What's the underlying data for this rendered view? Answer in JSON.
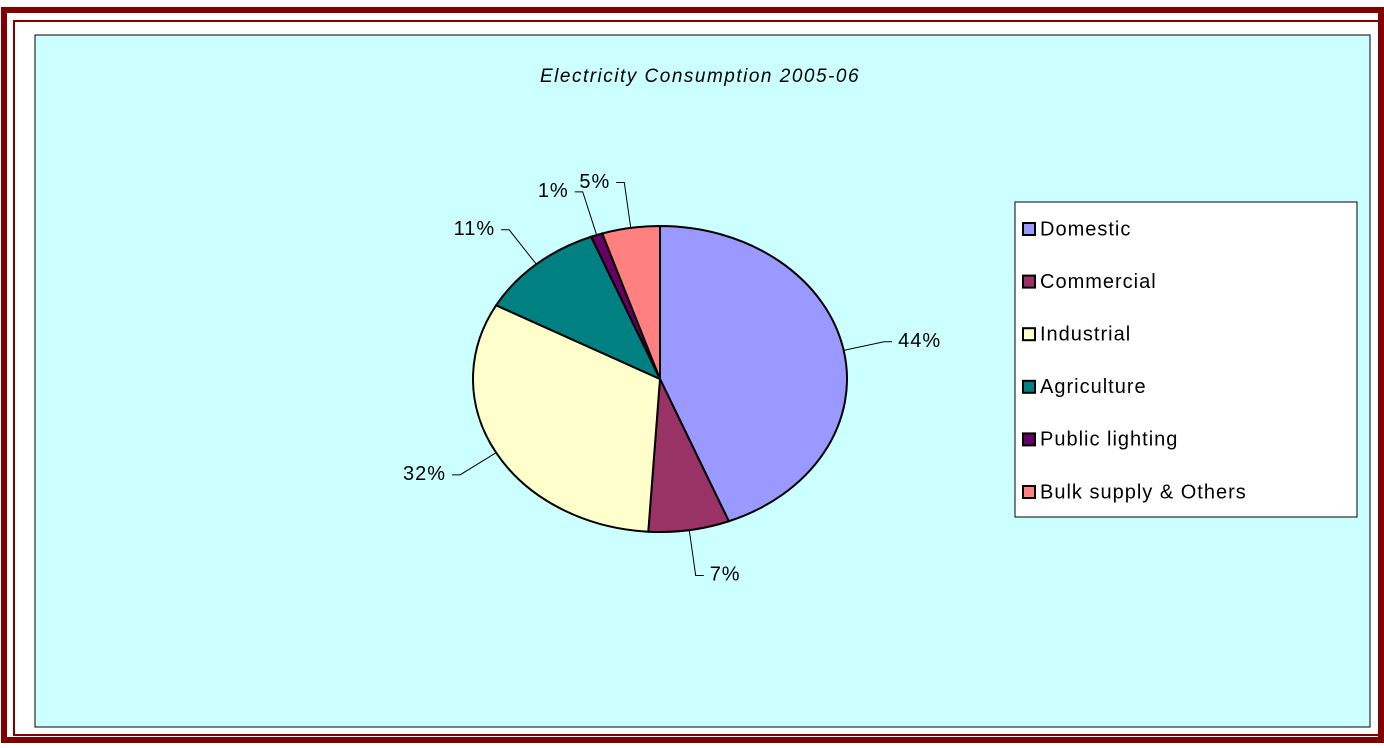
{
  "chart_data": {
    "type": "pie",
    "title": "Electricity Consumption 2005-06",
    "categories": [
      "Domestic",
      "Commercial",
      "Industrial",
      "Agriculture",
      "Public lighting",
      "Bulk supply & Others"
    ],
    "values": [
      44,
      7,
      32,
      11,
      1,
      5
    ],
    "value_labels": [
      "44%",
      "7%",
      "32%",
      "11%",
      "1%",
      "5%"
    ],
    "colors": [
      "#9999ff",
      "#993366",
      "#ffffcc",
      "#008080",
      "#660066",
      "#ff8080"
    ],
    "legend": "right"
  }
}
